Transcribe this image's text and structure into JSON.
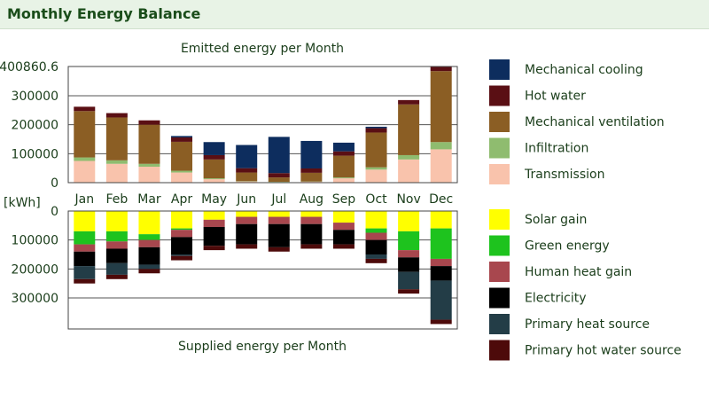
{
  "page": {
    "title": "Monthly Energy Balance"
  },
  "colors": {
    "Mechanical cooling": "#0d2d5e",
    "Hot water": "#5a0f14",
    "Mechanical ventilation": "#8b5e24",
    "Infiltration": "#8fbc6f",
    "Transmission": "#f9c3ac",
    "Solar gain": "#ffff00",
    "Green energy": "#1ec31e",
    "Human heat gain": "#a8474e",
    "Electricity": "#000000",
    "Primary heat source": "#233d47",
    "Primary hot water source": "#4d0a0a"
  },
  "chart_data": [
    {
      "type": "bar",
      "stacked": true,
      "title": "Emitted energy per Month",
      "ylabel": "[kWh]",
      "ylim": [
        0,
        400860.6
      ],
      "yticks": [
        "0",
        "100000",
        "200000",
        "300000",
        "400860.6"
      ],
      "grid": true,
      "legend_position": "right",
      "categories": [
        "Jan",
        "Feb",
        "Mar",
        "Apr",
        "May",
        "Jun",
        "Jul",
        "Aug",
        "Sep",
        "Oct",
        "Nov",
        "Dec"
      ],
      "series": [
        {
          "name": "Transmission",
          "values": [
            75000,
            65000,
            55000,
            35000,
            12000,
            4000,
            2000,
            3000,
            15000,
            45000,
            80000,
            115000
          ]
        },
        {
          "name": "Infiltration",
          "values": [
            12000,
            12000,
            10000,
            6000,
            3000,
            1000,
            1000,
            1000,
            3000,
            8000,
            15000,
            25000
          ]
        },
        {
          "name": "Mechanical ventilation",
          "values": [
            160000,
            148000,
            135000,
            100000,
            65000,
            30000,
            15000,
            30000,
            75000,
            120000,
            175000,
            245000
          ]
        },
        {
          "name": "Hot water",
          "values": [
            15000,
            15000,
            15000,
            15000,
            15000,
            15000,
            15000,
            15000,
            15000,
            15000,
            15000,
            15000
          ]
        },
        {
          "name": "Mechanical cooling",
          "values": [
            0,
            0,
            0,
            5000,
            45000,
            80000,
            125000,
            95000,
            30000,
            5000,
            0,
            0
          ]
        }
      ]
    },
    {
      "type": "bar",
      "stacked": true,
      "inverted": true,
      "title": "Supplied energy per Month",
      "ylabel": "[kWh]",
      "ylim": [
        0,
        400860.6
      ],
      "yticks": [
        "0",
        "100000",
        "200000",
        "300000"
      ],
      "grid": true,
      "legend_position": "right",
      "categories": [
        "Jan",
        "Feb",
        "Mar",
        "Apr",
        "May",
        "Jun",
        "Jul",
        "Aug",
        "Sep",
        "Oct",
        "Nov",
        "Dec"
      ],
      "series": [
        {
          "name": "Solar gain",
          "values": [
            70000,
            70000,
            80000,
            60000,
            30000,
            20000,
            20000,
            20000,
            40000,
            60000,
            70000,
            60000
          ]
        },
        {
          "name": "Green energy",
          "values": [
            45000,
            35000,
            20000,
            5000,
            0,
            0,
            0,
            0,
            0,
            15000,
            65000,
            105000
          ]
        },
        {
          "name": "Human heat gain",
          "values": [
            25000,
            25000,
            25000,
            25000,
            25000,
            25000,
            25000,
            25000,
            25000,
            25000,
            25000,
            25000
          ]
        },
        {
          "name": "Electricity",
          "values": [
            50000,
            50000,
            60000,
            60000,
            65000,
            70000,
            80000,
            70000,
            50000,
            50000,
            50000,
            50000
          ]
        },
        {
          "name": "Primary heat source",
          "values": [
            45000,
            40000,
            15000,
            5000,
            0,
            0,
            0,
            0,
            0,
            15000,
            60000,
            135000
          ]
        },
        {
          "name": "Primary hot water source",
          "values": [
            15000,
            15000,
            15000,
            15000,
            15000,
            15000,
            15000,
            15000,
            15000,
            15000,
            15000,
            15000
          ]
        }
      ]
    }
  ]
}
